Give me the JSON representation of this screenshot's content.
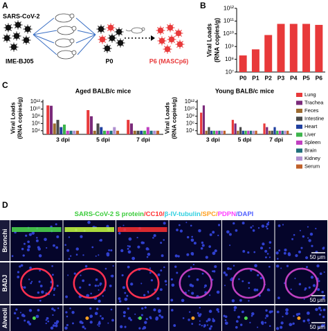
{
  "panel_a": {
    "label": "A",
    "virus": "SARS-CoV-2",
    "strain": "IME-BJ05",
    "p0": "P0",
    "p6": "P6 (MASCp6)"
  },
  "chart_data": [
    {
      "type": "bar",
      "panel_label": "B",
      "log_scale": true,
      "ylabel": [
        "Viral Loads",
        "(RNA copies/g)"
      ],
      "categories": [
        "P0",
        "P1",
        "P2",
        "P3",
        "P4",
        "P5",
        "P6"
      ],
      "values": [
        200000000,
        600000000,
        8000000000,
        60000000000,
        60000000000,
        60000000000,
        50000000000
      ],
      "color": "#e8393a",
      "ylim": [
        10000000,
        1000000000000
      ],
      "yticks": [
        {
          "value": 10000000,
          "label": "10⁷"
        },
        {
          "value": 100000000,
          "label": "10⁸"
        },
        {
          "value": 1000000000,
          "label": "10⁹"
        },
        {
          "value": 10000000000,
          "label": "10¹⁰"
        },
        {
          "value": 100000000000,
          "label": "10¹¹"
        },
        {
          "value": 1000000000000,
          "label": "10¹²"
        }
      ]
    },
    {
      "type": "grouped_bar",
      "panel_label": "C",
      "log_scale": true,
      "ylabel": [
        "Viral Loads",
        "(RNA copies/g)"
      ],
      "titles": [
        "Aged BALB/c mice",
        "Young BALB/c mice"
      ],
      "categories": [
        "3 dpi",
        "5 dpi",
        "7 dpi"
      ],
      "ylim": [
        1000,
        1000000000000
      ],
      "yticks": [
        {
          "value": 10000,
          "label": "10⁴"
        },
        {
          "value": 1000000,
          "label": "10⁶"
        },
        {
          "value": 100000000,
          "label": "10⁸"
        },
        {
          "value": 10000000000,
          "label": "10¹⁰"
        },
        {
          "value": 1000000000000,
          "label": "10¹²"
        }
      ],
      "series": [
        {
          "name": "Lung",
          "color": "#e8393a",
          "values": [
            [
              100000000000,
              5000000000,
              10000000
            ],
            [
              1000000000,
              10000000,
              1000000
            ]
          ]
        },
        {
          "name": "Trachea",
          "color": "#7b2a7a",
          "values": [
            [
              80000000000,
              100000000,
              1000000
            ],
            [
              100000000000,
              1000000,
              100000
            ]
          ]
        },
        {
          "name": "Feces",
          "color": "#9c6b30",
          "values": [
            [
              1000000,
              10000,
              10000
            ],
            [
              10000,
              10000,
              10000
            ]
          ]
        },
        {
          "name": "Intestine",
          "color": "#4a4a4a",
          "values": [
            [
              10000000,
              1000000,
              10000
            ],
            [
              100000,
              100000,
              10000
            ]
          ]
        },
        {
          "name": "Heart",
          "color": "#2040a0",
          "values": [
            [
              100000,
              100000,
              10000
            ],
            [
              10000,
              10000,
              100000
            ]
          ]
        },
        {
          "name": "Liver",
          "color": "#3cb44b",
          "values": [
            [
              500000,
              10000,
              10000
            ],
            [
              10000,
              10000,
              10000
            ]
          ]
        },
        {
          "name": "Spleen",
          "color": "#c040c0",
          "values": [
            [
              10000,
              10000,
              100000
            ],
            [
              10000,
              10000,
              10000
            ]
          ]
        },
        {
          "name": "Brain",
          "color": "#1f6f7a",
          "values": [
            [
              10000,
              10000,
              10000
            ],
            [
              10000,
              10000,
              10000
            ]
          ]
        },
        {
          "name": "Kidney",
          "color": "#b090d0",
          "values": [
            [
              10000,
              100000,
              10000
            ],
            [
              10000,
              10000,
              10000
            ]
          ]
        },
        {
          "name": "Serum",
          "color": "#c0602a",
          "values": [
            [
              10000,
              10000,
              10000
            ],
            [
              10000,
              10000,
              10000
            ]
          ]
        }
      ]
    }
  ],
  "panel_d": {
    "label": "D",
    "stain": [
      {
        "text": "SARS-CoV-2 S protein",
        "color": "#3ccc3c"
      },
      {
        "text": "/CC10/",
        "color": "#ff3030"
      },
      {
        "text": "β-IV-tubulin",
        "color": "#30d0e0"
      },
      {
        "text": "/SPC/",
        "color": "#ffa020"
      },
      {
        "text": "PDPN",
        "color": "#ff40ff"
      },
      {
        "text": "/DAPI",
        "color": "#5060ff"
      }
    ],
    "rows": [
      "Bronchi",
      "BADJ",
      "Alveoli"
    ],
    "scale_bars": [
      "50 μm",
      "50 μm",
      "50 μm"
    ]
  }
}
